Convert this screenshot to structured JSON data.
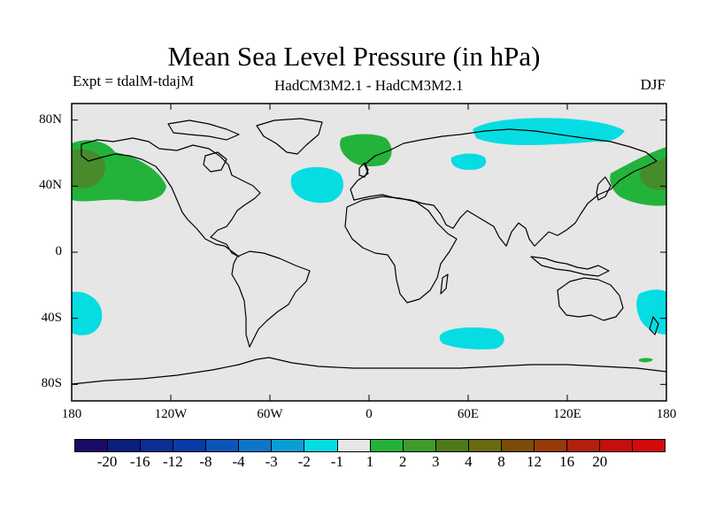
{
  "title": "Mean Sea Level Pressure (in hPa)",
  "expt_label": "Expt = tdalM-tdajM",
  "models_label": "HadCM3M2.1 - HadCM3M2.1",
  "season": "DJF",
  "y_ticks": [
    {
      "lat": 80,
      "label": "80N"
    },
    {
      "lat": 40,
      "label": "40N"
    },
    {
      "lat": 0,
      "label": "0"
    },
    {
      "lat": -40,
      "label": "40S"
    },
    {
      "lat": -80,
      "label": "80S"
    }
  ],
  "x_ticks": [
    {
      "lon": -180,
      "label": "180"
    },
    {
      "lon": -120,
      "label": "120W"
    },
    {
      "lon": -60,
      "label": "60W"
    },
    {
      "lon": 0,
      "label": "0"
    },
    {
      "lon": 60,
      "label": "60E"
    },
    {
      "lon": 120,
      "label": "120E"
    },
    {
      "lon": 180,
      "label": "180"
    }
  ],
  "colors": {
    "background": "#e6e6e6",
    "neg_fill": "#06dde2",
    "pos1_fill": "#23b33b",
    "pos2_fill": "#478b2c"
  },
  "colorbar": {
    "colors": [
      "#1c0a66",
      "#0a1e7d",
      "#0a2e94",
      "#0a3aa8",
      "#0c55b8",
      "#0e76c8",
      "#0b9dd6",
      "#06dde2",
      "#e6e6e6",
      "#23b33b",
      "#3e9b2c",
      "#4e7a1c",
      "#6a6a10",
      "#7a4c0a",
      "#973a0a",
      "#b0200a",
      "#c4100c",
      "#d40a0a"
    ],
    "labels": [
      {
        "edge": 1,
        "text": "-20"
      },
      {
        "edge": 2,
        "text": "-16"
      },
      {
        "edge": 3,
        "text": "-12"
      },
      {
        "edge": 4,
        "text": "-8"
      },
      {
        "edge": 5,
        "text": "-4"
      },
      {
        "edge": 6,
        "text": "-3"
      },
      {
        "edge": 7,
        "text": "-2"
      },
      {
        "edge": 8,
        "text": "-1"
      },
      {
        "edge": 9,
        "text": "1"
      },
      {
        "edge": 10,
        "text": "2"
      },
      {
        "edge": 11,
        "text": "3"
      },
      {
        "edge": 12,
        "text": "4"
      },
      {
        "edge": 13,
        "text": "8"
      },
      {
        "edge": 14,
        "text": "12"
      },
      {
        "edge": 15,
        "text": "16"
      },
      {
        "edge": 16,
        "text": "20"
      }
    ]
  },
  "anomaly_regions": [
    {
      "name": "north-pacific-positive",
      "level": "pos1"
    },
    {
      "name": "north-pacific-core",
      "level": "pos2"
    },
    {
      "name": "west-pacific-positive",
      "level": "pos1"
    },
    {
      "name": "west-pacific-core",
      "level": "pos2"
    },
    {
      "name": "north-atlantic-positive",
      "level": "pos1"
    },
    {
      "name": "arctic-siberia-negative",
      "level": "neg"
    },
    {
      "name": "mid-atlantic-negative",
      "level": "neg"
    },
    {
      "name": "scandinavia-negative",
      "level": "neg"
    },
    {
      "name": "south-pacific-east-negative",
      "level": "neg"
    },
    {
      "name": "south-pacific-west-negative",
      "level": "neg"
    },
    {
      "name": "southern-indian-negative",
      "level": "neg"
    },
    {
      "name": "southern-ocean-small-positive",
      "level": "pos1"
    }
  ]
}
